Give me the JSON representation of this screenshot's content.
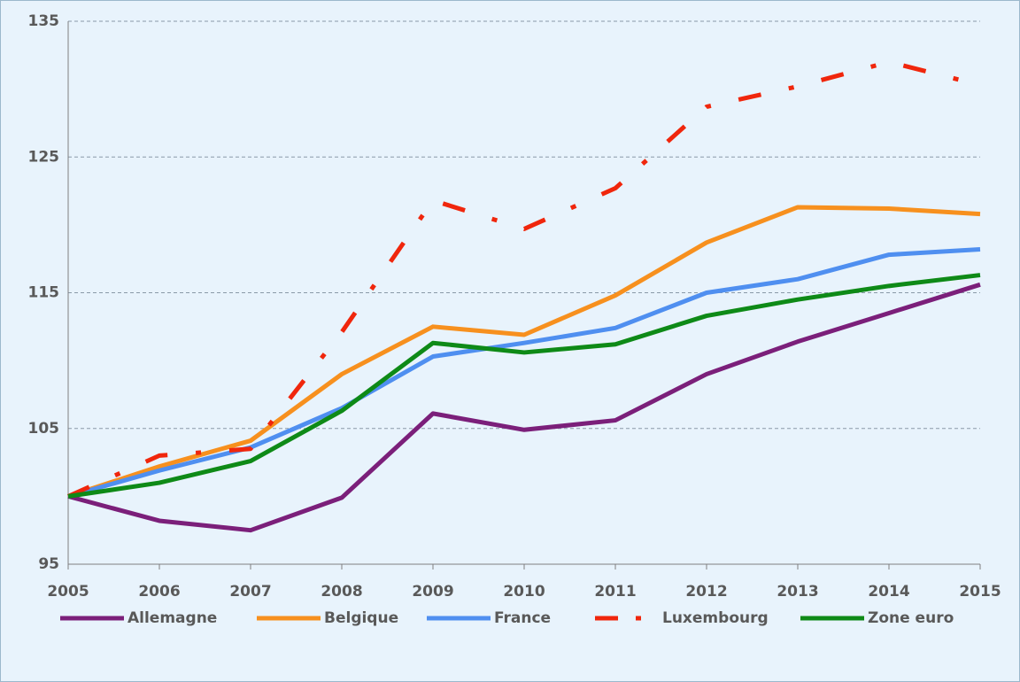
{
  "chart_data": {
    "type": "line",
    "categories": [
      "2005",
      "2006",
      "2007",
      "2008",
      "2009",
      "2010",
      "2011",
      "2012",
      "2013",
      "2014",
      "2015"
    ],
    "series": [
      {
        "name": "Allemagne",
        "color": "#7b1f7a",
        "dash": false,
        "values": [
          100,
          98.2,
          97.5,
          99.9,
          106.1,
          104.9,
          105.6,
          109.0,
          111.4,
          113.5,
          115.6
        ]
      },
      {
        "name": "Belgique",
        "color": "#f7901e",
        "dash": false,
        "values": [
          100,
          102.2,
          104.1,
          109.0,
          112.5,
          111.9,
          114.8,
          118.7,
          121.3,
          121.2,
          120.8
        ]
      },
      {
        "name": "France",
        "color": "#4f8ff0",
        "dash": false,
        "values": [
          100,
          101.9,
          103.6,
          106.5,
          110.3,
          111.3,
          112.4,
          115.0,
          116.0,
          117.8,
          118.2
        ]
      },
      {
        "name": "Luxembourg",
        "color": "#f0260c",
        "dash": true,
        "values": [
          100,
          103.0,
          103.5,
          112.1,
          121.8,
          119.7,
          122.7,
          128.7,
          130.2,
          132.0,
          130.3
        ]
      },
      {
        "name": "Zone euro",
        "color": "#0e8a17",
        "dash": false,
        "values": [
          100,
          101.0,
          102.6,
          106.3,
          111.3,
          110.6,
          111.2,
          113.3,
          114.5,
          115.5,
          116.3
        ]
      }
    ],
    "ylim": [
      95,
      135
    ],
    "yticks": [
      95,
      105,
      115,
      125,
      135
    ],
    "grid": true,
    "legend": "bottom"
  }
}
